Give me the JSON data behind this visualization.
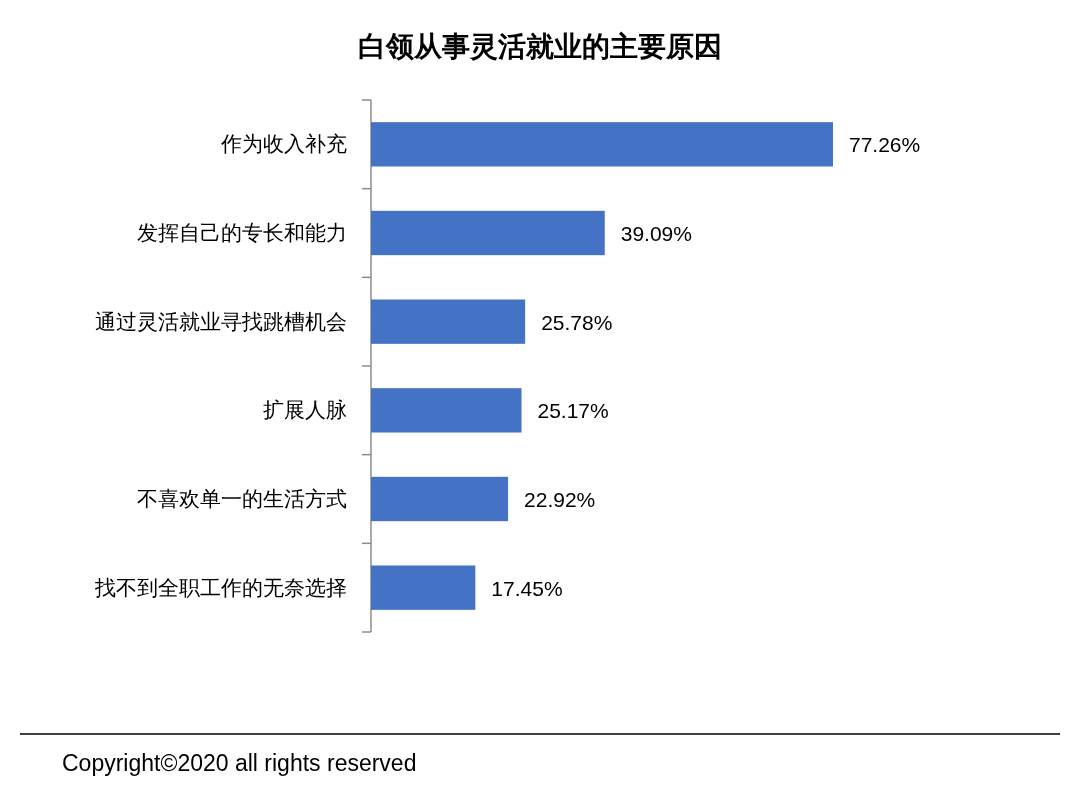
{
  "chart_data": {
    "type": "bar",
    "orientation": "horizontal",
    "title": "白领从事灵活就业的主要原因",
    "categories": [
      "作为收入补充",
      "发挥自己的专长和能力",
      "通过灵活就业寻找跳槽机会",
      "扩展人脉",
      "不喜欢单一的生活方式",
      "找不到全职工作的无奈选择"
    ],
    "values": [
      77.26,
      39.09,
      25.78,
      25.17,
      22.92,
      17.45
    ],
    "value_labels": [
      "77.26%",
      "39.09%",
      "25.78%",
      "25.17%",
      "22.92%",
      "17.45%"
    ],
    "color": "#4472c4",
    "annotations": [
      "Copyright©2020 all rights reserved"
    ]
  }
}
